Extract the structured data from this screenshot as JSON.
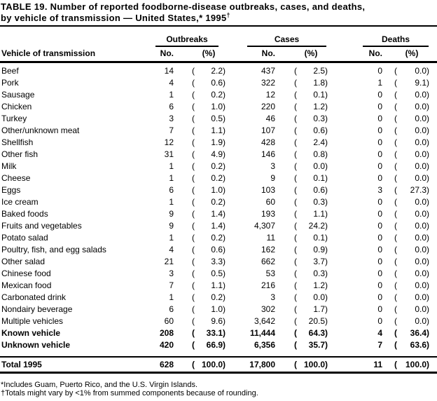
{
  "title": {
    "lines": [
      "TABLE 19. Number of reported foodborne-disease outbreaks, cases, and deaths,",
      "by vehicle of transmission — United States,* 1995"
    ],
    "dagger": "†"
  },
  "table": {
    "columns": {
      "vehicle": "Vehicle of transmission",
      "groups": [
        {
          "label": "Outbreaks"
        },
        {
          "label": "Cases"
        },
        {
          "label": "Deaths"
        }
      ],
      "no": "No.",
      "pct": "(%)"
    },
    "format": {
      "open": "(",
      "close": ")"
    },
    "rows": [
      {
        "label": "Beef",
        "o_no": "14",
        "o_pct": "2.2",
        "c_no": "437",
        "c_pct": "2.5",
        "d_no": "0",
        "d_pct": "0.0"
      },
      {
        "label": "Pork",
        "o_no": "4",
        "o_pct": "0.6",
        "c_no": "322",
        "c_pct": "1.8",
        "d_no": "1",
        "d_pct": "9.1"
      },
      {
        "label": "Sausage",
        "o_no": "1",
        "o_pct": "0.2",
        "c_no": "12",
        "c_pct": "0.1",
        "d_no": "0",
        "d_pct": "0.0"
      },
      {
        "label": "Chicken",
        "o_no": "6",
        "o_pct": "1.0",
        "c_no": "220",
        "c_pct": "1.2",
        "d_no": "0",
        "d_pct": "0.0"
      },
      {
        "label": "Turkey",
        "o_no": "3",
        "o_pct": "0.5",
        "c_no": "46",
        "c_pct": "0.3",
        "d_no": "0",
        "d_pct": "0.0"
      },
      {
        "label": "Other/unknown meat",
        "o_no": "7",
        "o_pct": "1.1",
        "c_no": "107",
        "c_pct": "0.6",
        "d_no": "0",
        "d_pct": "0.0"
      },
      {
        "label": "Shellfish",
        "o_no": "12",
        "o_pct": "1.9",
        "c_no": "428",
        "c_pct": "2.4",
        "d_no": "0",
        "d_pct": "0.0"
      },
      {
        "label": "Other fish",
        "o_no": "31",
        "o_pct": "4.9",
        "c_no": "146",
        "c_pct": "0.8",
        "d_no": "0",
        "d_pct": "0.0"
      },
      {
        "label": "Milk",
        "o_no": "1",
        "o_pct": "0.2",
        "c_no": "3",
        "c_pct": "0.0",
        "d_no": "0",
        "d_pct": "0.0"
      },
      {
        "label": "Cheese",
        "o_no": "1",
        "o_pct": "0.2",
        "c_no": "9",
        "c_pct": "0.1",
        "d_no": "0",
        "d_pct": "0.0"
      },
      {
        "label": "Eggs",
        "o_no": "6",
        "o_pct": "1.0",
        "c_no": "103",
        "c_pct": "0.6",
        "d_no": "3",
        "d_pct": "27.3"
      },
      {
        "label": "Ice cream",
        "o_no": "1",
        "o_pct": "0.2",
        "c_no": "60",
        "c_pct": "0.3",
        "d_no": "0",
        "d_pct": "0.0"
      },
      {
        "label": "Baked foods",
        "o_no": "9",
        "o_pct": "1.4",
        "c_no": "193",
        "c_pct": "1.1",
        "d_no": "0",
        "d_pct": "0.0"
      },
      {
        "label": "Fruits and vegetables",
        "o_no": "9",
        "o_pct": "1.4",
        "c_no": "4,307",
        "c_pct": "24.2",
        "d_no": "0",
        "d_pct": "0.0"
      },
      {
        "label": "Potato salad",
        "o_no": "1",
        "o_pct": "0.2",
        "c_no": "11",
        "c_pct": "0.1",
        "d_no": "0",
        "d_pct": "0.0"
      },
      {
        "label": "Poultry, fish, and egg salads",
        "o_no": "4",
        "o_pct": "0.6",
        "c_no": "162",
        "c_pct": "0.9",
        "d_no": "0",
        "d_pct": "0.0"
      },
      {
        "label": "Other salad",
        "o_no": "21",
        "o_pct": "3.3",
        "c_no": "662",
        "c_pct": "3.7",
        "d_no": "0",
        "d_pct": "0.0"
      },
      {
        "label": "Chinese food",
        "o_no": "3",
        "o_pct": "0.5",
        "c_no": "53",
        "c_pct": "0.3",
        "d_no": "0",
        "d_pct": "0.0"
      },
      {
        "label": "Mexican food",
        "o_no": "7",
        "o_pct": "1.1",
        "c_no": "216",
        "c_pct": "1.2",
        "d_no": "0",
        "d_pct": "0.0"
      },
      {
        "label": "Carbonated drink",
        "o_no": "1",
        "o_pct": "0.2",
        "c_no": "3",
        "c_pct": "0.0",
        "d_no": "0",
        "d_pct": "0.0"
      },
      {
        "label": "Nondairy beverage",
        "o_no": "6",
        "o_pct": "1.0",
        "c_no": "302",
        "c_pct": "1.7",
        "d_no": "0",
        "d_pct": "0.0"
      },
      {
        "label": "Multiple vehicles",
        "o_no": "60",
        "o_pct": "9.6",
        "c_no": "3,642",
        "c_pct": "20.5",
        "d_no": "0",
        "d_pct": "0.0"
      },
      {
        "label": "Known vehicle",
        "bold": true,
        "o_no": "208",
        "o_pct": "33.1",
        "c_no": "11,444",
        "c_pct": "64.3",
        "d_no": "4",
        "d_pct": "36.4"
      },
      {
        "label": "Unknown vehicle",
        "bold": true,
        "o_no": "420",
        "o_pct": "66.9",
        "c_no": "6,356",
        "c_pct": "35.7",
        "d_no": "7",
        "d_pct": "63.6"
      },
      {
        "label": "Total 1995",
        "bold": true,
        "total": true,
        "o_no": "628",
        "o_pct": "100.0",
        "c_no": "17,800",
        "c_pct": "100.0",
        "d_no": "11",
        "d_pct": "100.0"
      }
    ]
  },
  "footnotes": [
    "*Includes Guam, Puerto Rico, and the U.S. Virgin Islands.",
    "†Totals might vary by <1% from summed components because of rounding."
  ],
  "colors": {
    "text": "#000000",
    "background": "#ffffff",
    "rule": "#000000"
  }
}
